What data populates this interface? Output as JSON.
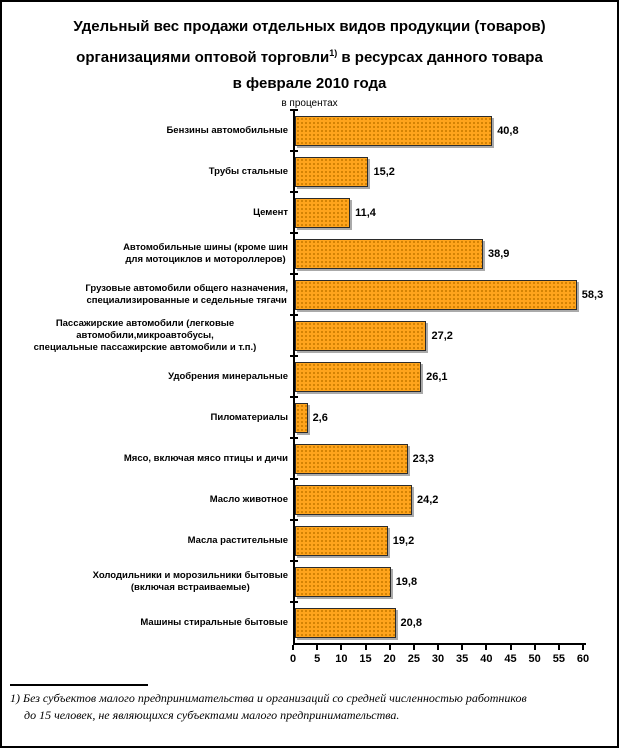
{
  "title": {
    "line1": "Удельный вес продажи отдельных видов продукции (товаров)",
    "line2_pre": "организациями оптовой торговли",
    "line2_sup": "1)",
    "line2_post": " в ресурсах данного товара",
    "line3": "в феврале 2010 года"
  },
  "subtitle": "в процентах",
  "chart_data": {
    "type": "bar",
    "orientation": "horizontal",
    "title": "Удельный вес продажи отдельных видов продукции (товаров) организациями оптовой торговли 1) в ресурсах данного товара в феврале 2010 года",
    "subtitle": "в процентах",
    "categories": [
      "Бензины автомобильные",
      "Трубы стальные",
      "Цемент",
      "Автомобильные шины (кроме шин\nдля мотоциклов и мотороллеров)",
      "Грузовые автомобили общего назначения,\nспециализированные и седельные тягачи",
      "Пассажирские автомобили (легковые автомобили,микроавтобусы,\nспециальные пассажирские автомобили и т.п.)",
      "Удобрения минеральные",
      "Пиломатериалы",
      "Мясо, включая мясо птицы и дичи",
      "Масло животное",
      "Масла растительные",
      "Холодильники и морозильники бытовые\n(включая встраиваемые)",
      "Машины стиральные бытовые"
    ],
    "values": [
      40.8,
      15.2,
      11.4,
      38.9,
      58.3,
      27.2,
      26.1,
      2.6,
      23.3,
      24.2,
      19.2,
      19.8,
      20.8
    ],
    "value_labels": [
      "40,8",
      "15,2",
      "11,4",
      "38,9",
      "58,3",
      "27,2",
      "26,1",
      "2,6",
      "23,3",
      "24,2",
      "19,2",
      "19,8",
      "20,8"
    ],
    "xlim": [
      0,
      60
    ],
    "x_ticks": [
      0,
      5,
      10,
      15,
      20,
      25,
      30,
      35,
      40,
      45,
      50,
      55,
      60
    ],
    "grid": false,
    "legend": false,
    "colors": {
      "bar_fill": "#FFA41C",
      "bar_dot": "#CC7D00",
      "bar_border": "#2B2B2B",
      "bar_shadow": "#AAAAAA",
      "axis": "#000000"
    }
  },
  "footnote": {
    "line1": "1) Без субъектов малого предпринимательства и организаций со средней численностью работников",
    "line2": "до 15 человек, не являющихся субъектами малого предпринимательства."
  }
}
